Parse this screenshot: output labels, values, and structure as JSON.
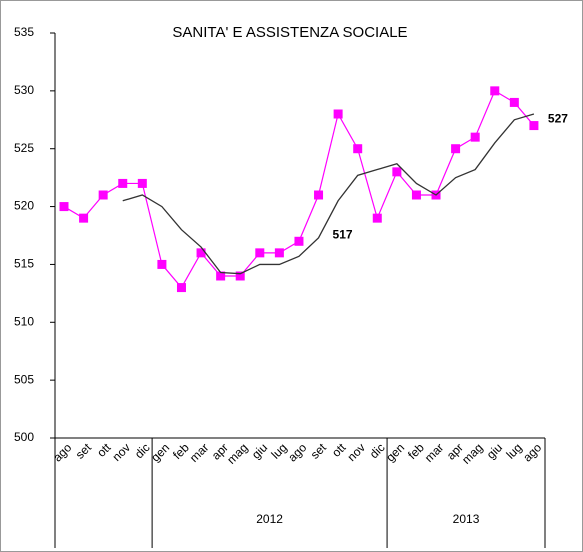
{
  "chart_data": {
    "type": "line",
    "title": "SANITA' E ASSISTENZA SOCIALE",
    "categories": [
      "ago",
      "set",
      "ott",
      "nov",
      "dic",
      "gen",
      "feb",
      "mar",
      "apr",
      "mag",
      "giu",
      "lug",
      "ago",
      "set",
      "ott",
      "nov",
      "dic",
      "gen",
      "feb",
      "mar",
      "apr",
      "mag",
      "giu",
      "lug",
      "ago"
    ],
    "groups": [
      {
        "label": "2012",
        "from": 5,
        "to": 16
      },
      {
        "label": "2013",
        "from": 17,
        "to": 24
      }
    ],
    "series": [
      {
        "color": "#ff00ff",
        "marker": "square",
        "values": [
          520,
          519,
          521,
          522,
          522,
          515,
          513,
          516,
          514,
          514,
          516,
          516,
          517,
          521,
          528,
          525,
          519,
          523,
          521,
          521,
          525,
          526,
          530,
          529,
          527
        ]
      },
      {
        "color": "#333333",
        "values": [
          null,
          null,
          null,
          520.5,
          521,
          520,
          518,
          516.5,
          514.3,
          514.2,
          515,
          515,
          515.7,
          517.3,
          520.5,
          522.7,
          523.2,
          523.7,
          522,
          521,
          522.5,
          523.2,
          525.5,
          527.5,
          528
        ]
      }
    ],
    "annotations": [
      {
        "text": "517",
        "at": 13,
        "y": 517
      },
      {
        "text": "527",
        "at": 24,
        "y": 527
      }
    ],
    "ylim": [
      500,
      535
    ],
    "yticks": [
      500,
      505,
      510,
      515,
      520,
      525,
      530,
      535
    ]
  }
}
